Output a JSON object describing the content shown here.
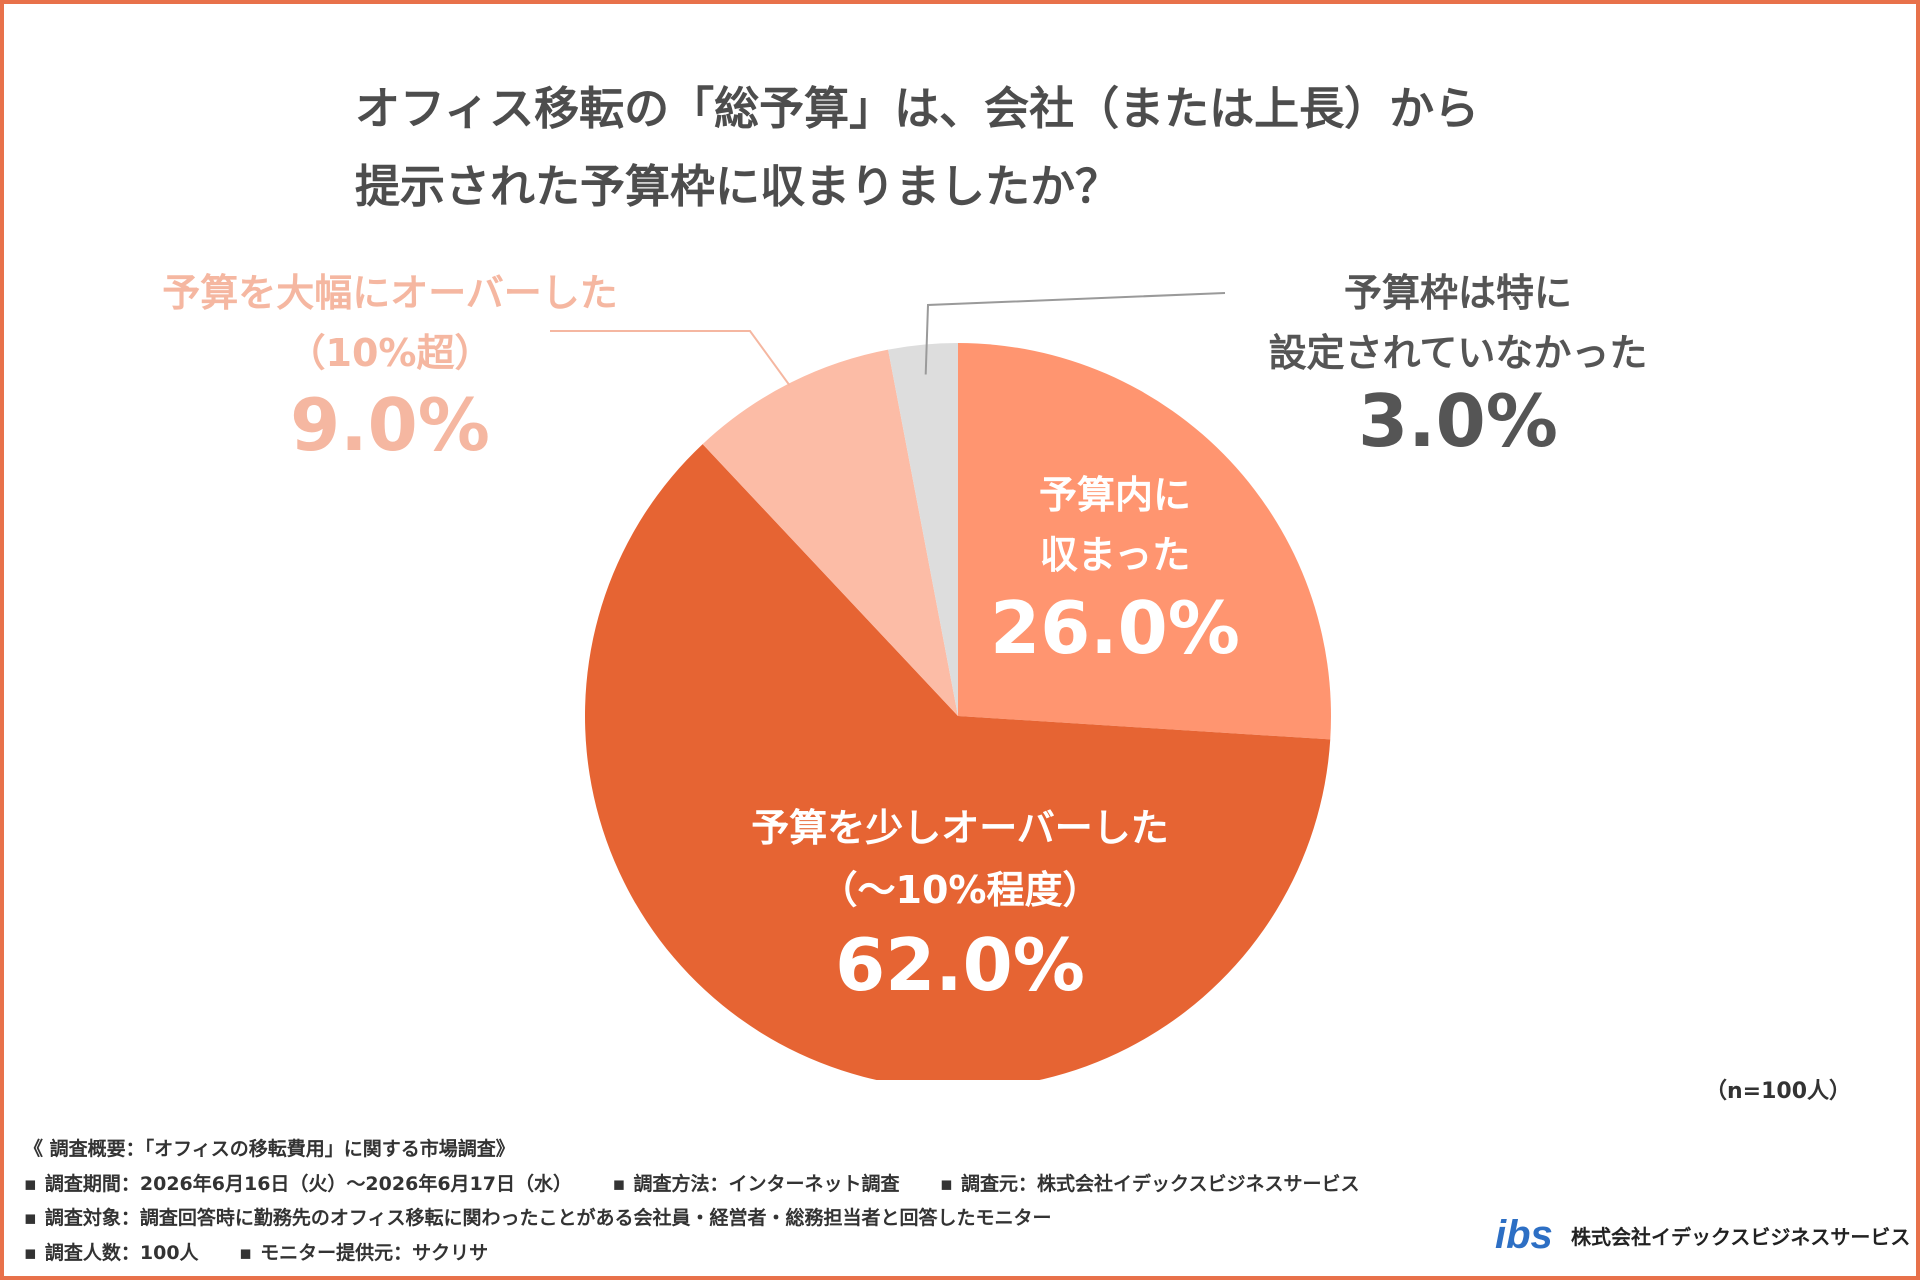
{
  "title": {
    "line1": "オフィス移転の「総予算」は、会社（または上長）から",
    "line2": "提示された予算枠に収まりましたか？"
  },
  "chart_data": {
    "type": "pie",
    "unit": "%",
    "start": "12 o'clock, clockwise",
    "slices": [
      {
        "label_lines": [
          "予算内に",
          "収まった"
        ],
        "value": 26.0,
        "value_text": "26.0%",
        "color": "#ff9570",
        "label_color": "#ffffff",
        "label_placement": "inside"
      },
      {
        "label_lines": [
          "予算を少しオーバーした",
          "（〜10%程度）"
        ],
        "value": 62.0,
        "value_text": "62.0%",
        "color": "#e66433",
        "label_color": "#ffffff",
        "label_placement": "inside"
      },
      {
        "label_lines": [
          "予算を大幅にオーバーした",
          "（10%超）"
        ],
        "value": 9.0,
        "value_text": "9.0%",
        "color": "#fcbca6",
        "label_color": "#f5b7a1",
        "label_placement": "outside-left"
      },
      {
        "label_lines": [
          "予算枠は特に",
          "設定されていなかった"
        ],
        "value": 3.0,
        "value_text": "3.0%",
        "color": "#dddddd",
        "label_color": "#555555",
        "label_placement": "outside-right"
      }
    ]
  },
  "sample_size": "（n=100人）",
  "footnote": {
    "heading": "《 調査概要：「オフィスの移転費用」に関する市場調査》",
    "period": "調査期間：2026年6月16日（火）〜2026年6月17日（水）",
    "method": "調査方法：インターネット調査",
    "source": "調査元：株式会社イデックスビジネスサービス",
    "target": "調査対象：調査回答時に勤務先のオフィス移転に関わったことがある会社員・経営者・総務担当者と回答したモニター",
    "respondents": "調査人数：100人",
    "provider": "モニター提供元：サクリサ"
  },
  "brand": {
    "logo_text": "ibs",
    "name": "株式会社イデックスビジネスサービス",
    "logo_color": "#2d6fc4"
  }
}
